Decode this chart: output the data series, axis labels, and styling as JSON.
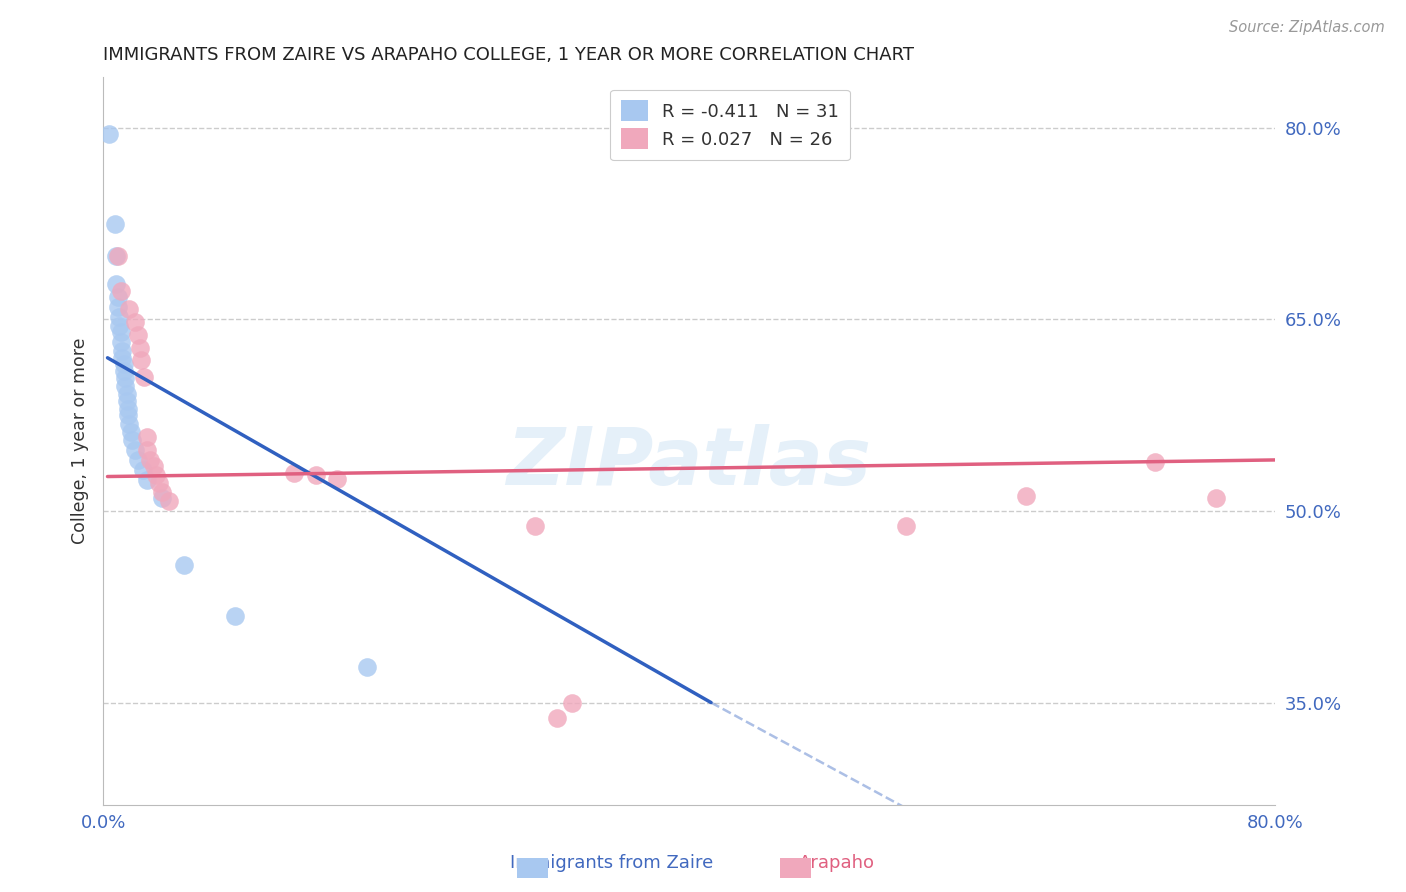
{
  "title": "IMMIGRANTS FROM ZAIRE VS ARAPAHO COLLEGE, 1 YEAR OR MORE CORRELATION CHART",
  "source": "Source: ZipAtlas.com",
  "ylabel": "College, 1 year or more",
  "xlim": [
    0.0,
    0.8
  ],
  "ylim": [
    0.27,
    0.84
  ],
  "ytick_right_labels": [
    "35.0%",
    "50.0%",
    "65.0%",
    "80.0%"
  ],
  "ytick_right_positions": [
    0.35,
    0.5,
    0.65,
    0.8
  ],
  "grid_color": "#cccccc",
  "background_color": "#ffffff",
  "watermark": "ZIPatlas",
  "legend_r1": "R = -0.411",
  "legend_n1": "N = 31",
  "legend_r2": "R = 0.027",
  "legend_n2": "N = 26",
  "blue_color": "#a8c8f0",
  "pink_color": "#f0a8bc",
  "blue_line_color": "#3060c0",
  "pink_line_color": "#e06080",
  "blue_scatter": [
    [
      0.004,
      0.795
    ],
    [
      0.008,
      0.725
    ],
    [
      0.009,
      0.7
    ],
    [
      0.009,
      0.678
    ],
    [
      0.01,
      0.668
    ],
    [
      0.01,
      0.66
    ],
    [
      0.011,
      0.652
    ],
    [
      0.011,
      0.645
    ],
    [
      0.012,
      0.64
    ],
    [
      0.012,
      0.632
    ],
    [
      0.013,
      0.625
    ],
    [
      0.013,
      0.62
    ],
    [
      0.014,
      0.615
    ],
    [
      0.014,
      0.61
    ],
    [
      0.015,
      0.604
    ],
    [
      0.015,
      0.598
    ],
    [
      0.016,
      0.592
    ],
    [
      0.016,
      0.586
    ],
    [
      0.017,
      0.58
    ],
    [
      0.017,
      0.575
    ],
    [
      0.018,
      0.568
    ],
    [
      0.019,
      0.562
    ],
    [
      0.02,
      0.556
    ],
    [
      0.022,
      0.548
    ],
    [
      0.024,
      0.54
    ],
    [
      0.027,
      0.532
    ],
    [
      0.03,
      0.524
    ],
    [
      0.04,
      0.51
    ],
    [
      0.055,
      0.458
    ],
    [
      0.09,
      0.418
    ],
    [
      0.18,
      0.378
    ]
  ],
  "pink_scatter": [
    [
      0.01,
      0.7
    ],
    [
      0.012,
      0.672
    ],
    [
      0.018,
      0.658
    ],
    [
      0.022,
      0.648
    ],
    [
      0.024,
      0.638
    ],
    [
      0.025,
      0.628
    ],
    [
      0.026,
      0.618
    ],
    [
      0.028,
      0.605
    ],
    [
      0.03,
      0.558
    ],
    [
      0.03,
      0.548
    ],
    [
      0.032,
      0.54
    ],
    [
      0.035,
      0.535
    ],
    [
      0.036,
      0.528
    ],
    [
      0.038,
      0.522
    ],
    [
      0.04,
      0.515
    ],
    [
      0.045,
      0.508
    ],
    [
      0.13,
      0.53
    ],
    [
      0.145,
      0.528
    ],
    [
      0.16,
      0.525
    ],
    [
      0.31,
      0.338
    ],
    [
      0.32,
      0.35
    ],
    [
      0.548,
      0.488
    ],
    [
      0.63,
      0.512
    ],
    [
      0.718,
      0.538
    ],
    [
      0.76,
      0.51
    ],
    [
      0.295,
      0.488
    ]
  ],
  "blue_trendline": {
    "x_solid_start": 0.003,
    "y_solid_start": 0.62,
    "x_solid_end": 0.415,
    "y_solid_end": 0.35,
    "x_dash_start": 0.415,
    "y_dash_start": 0.35,
    "x_dash_end": 0.6,
    "y_dash_end": 0.235
  },
  "pink_trendline": {
    "x_start": 0.003,
    "y_start": 0.527,
    "x_end": 0.8,
    "y_end": 0.54
  }
}
